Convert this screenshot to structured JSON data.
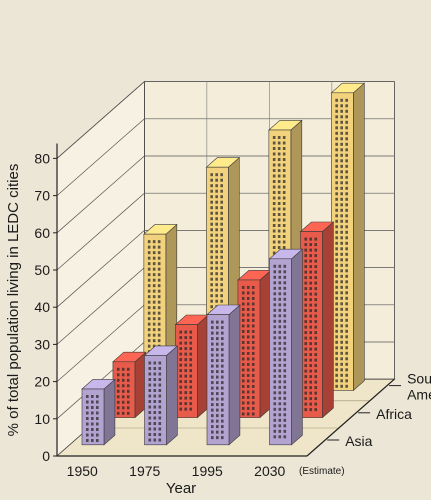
{
  "chart_data": {
    "type": "bar",
    "subtype": "3d-grouped-bar",
    "title": "",
    "xlabel": "Year",
    "ylabel": "% of total population living in LEDC cities",
    "ylim": [
      0,
      80
    ],
    "y_ticks": [
      "0",
      "10",
      "20",
      "30",
      "40",
      "50",
      "60",
      "70",
      "80"
    ],
    "categories": [
      "1950",
      "1975",
      "1995",
      "2030"
    ],
    "category_note": "(Estimate)",
    "series": [
      {
        "name": "Asia",
        "values": [
          15,
          24,
          35,
          50
        ],
        "color": "#b3a3d1"
      },
      {
        "name": "Africa",
        "values": [
          15,
          25,
          37,
          50
        ],
        "color": "#e85a4a"
      },
      {
        "name": "South America",
        "values": [
          42,
          60,
          70,
          80
        ],
        "color": "#f2d27c"
      }
    ],
    "series_label_lines": {
      "Asia": [
        "Asia"
      ],
      "Africa": [
        "Africa"
      ],
      "South America": [
        "South",
        "America"
      ]
    },
    "grid": true,
    "legend": "right, along depth axis",
    "background_color": "#ece6d6",
    "wall_color": "#f3edda",
    "floor_color": "#efe5c8"
  }
}
